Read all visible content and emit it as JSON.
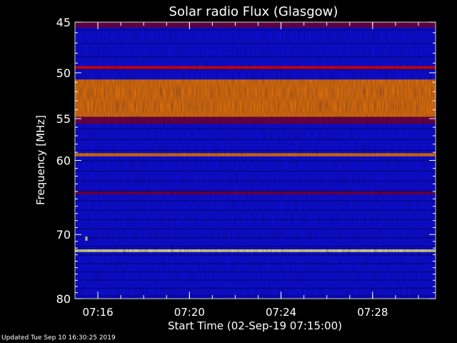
{
  "chart_data": {
    "type": "heatmap",
    "title": "Solar radio Flux (Glasgow)",
    "xlabel": "Start Time (02-Sep-19 07:15:00)",
    "ylabel": "Frequency [MHz]",
    "x_range": [
      "07:15:00",
      "07:30:45"
    ],
    "y_range": [
      45,
      80
    ],
    "x_ticks": [
      "07:16",
      "07:20",
      "07:24",
      "07:28"
    ],
    "y_ticks": [
      45,
      50,
      55,
      60,
      70,
      80
    ],
    "y_scale": "log",
    "colormap": [
      "#000064",
      "#0000ff",
      "#3030ff",
      "#800040",
      "#ff0000",
      "#ff8000",
      "#ffff80"
    ],
    "bands": [
      {
        "f_min": 45.0,
        "f_max": 45.5,
        "level": 0.45
      },
      {
        "f_min": 49.3,
        "f_max": 49.6,
        "level": 0.7
      },
      {
        "f_min": 50.7,
        "f_max": 54.8,
        "level": 0.8
      },
      {
        "f_min": 54.8,
        "f_max": 55.6,
        "level": 0.55
      },
      {
        "f_min": 59.1,
        "f_max": 59.5,
        "level": 0.75
      },
      {
        "f_min": 64.0,
        "f_max": 64.4,
        "level": 0.5
      },
      {
        "f_min": 72.2,
        "f_max": 72.6,
        "level": 0.95
      }
    ],
    "bursts": [
      {
        "time": "07:18:45",
        "freq": 51.2,
        "level": 0.85
      },
      {
        "time": "07:28:45",
        "freq": 51.2,
        "level": 0.85
      },
      {
        "time": "07:15:30",
        "freq": 70.6,
        "level": 0.95
      }
    ]
  },
  "footer": {
    "updated": "Updated Tue Sep 10 16:30:25 2019"
  }
}
